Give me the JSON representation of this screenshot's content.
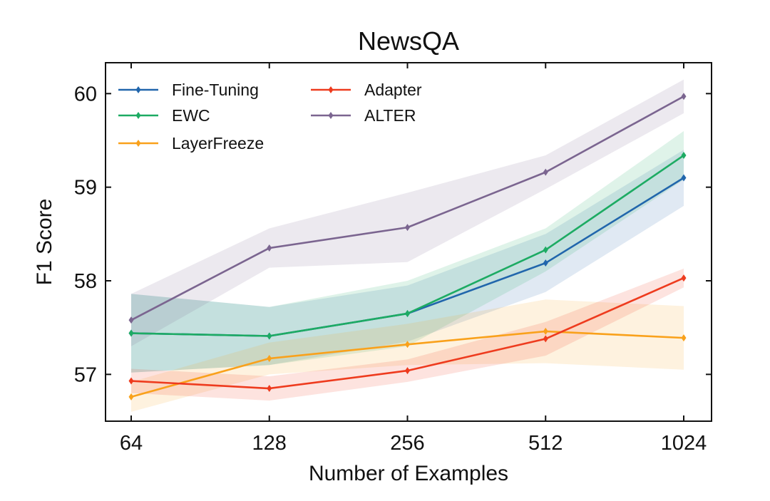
{
  "chart_data": {
    "type": "line",
    "title": "NewsQA",
    "xlabel": "Number of Examples",
    "ylabel": "F1 Score",
    "categories": [
      "64",
      "128",
      "256",
      "512",
      "1024"
    ],
    "yticks": [
      57,
      58,
      59,
      60
    ],
    "ylim": [
      56.5,
      60.33
    ],
    "grid": false,
    "legend_position": "top-left",
    "legend_columns": 2,
    "series": [
      {
        "name": "Fine-Tuning",
        "color": "#2166ac",
        "values": [
          57.44,
          57.41,
          57.65,
          58.19,
          59.1
        ],
        "lower": [
          57.02,
          57.1,
          57.35,
          57.88,
          58.8
        ],
        "upper": [
          57.86,
          57.72,
          57.95,
          58.5,
          59.4
        ]
      },
      {
        "name": "EWC",
        "color": "#1dab63",
        "values": [
          57.44,
          57.41,
          57.65,
          58.33,
          59.34
        ],
        "lower": [
          57.02,
          57.1,
          57.3,
          58.1,
          59.08
        ],
        "upper": [
          57.86,
          57.72,
          58.0,
          58.56,
          59.6
        ]
      },
      {
        "name": "LayerFreeze",
        "color": "#f9a11b",
        "values": [
          56.76,
          57.17,
          57.32,
          57.46,
          57.39
        ],
        "lower": [
          56.6,
          57.0,
          57.1,
          57.12,
          57.05
        ],
        "upper": [
          56.92,
          57.34,
          57.54,
          57.8,
          57.73
        ]
      },
      {
        "name": "Adapter",
        "color": "#ee3b1e",
        "values": [
          56.93,
          56.85,
          57.04,
          57.38,
          58.03
        ],
        "lower": [
          56.8,
          56.72,
          56.92,
          57.2,
          57.93
        ],
        "upper": [
          57.06,
          56.98,
          57.16,
          57.56,
          58.13
        ]
      },
      {
        "name": "ALTER",
        "color": "#7b6590",
        "values": [
          57.58,
          58.35,
          58.57,
          59.16,
          59.97
        ],
        "lower": [
          57.3,
          58.14,
          58.2,
          58.98,
          59.79
        ],
        "upper": [
          57.86,
          58.56,
          58.94,
          59.34,
          60.15
        ]
      }
    ]
  }
}
